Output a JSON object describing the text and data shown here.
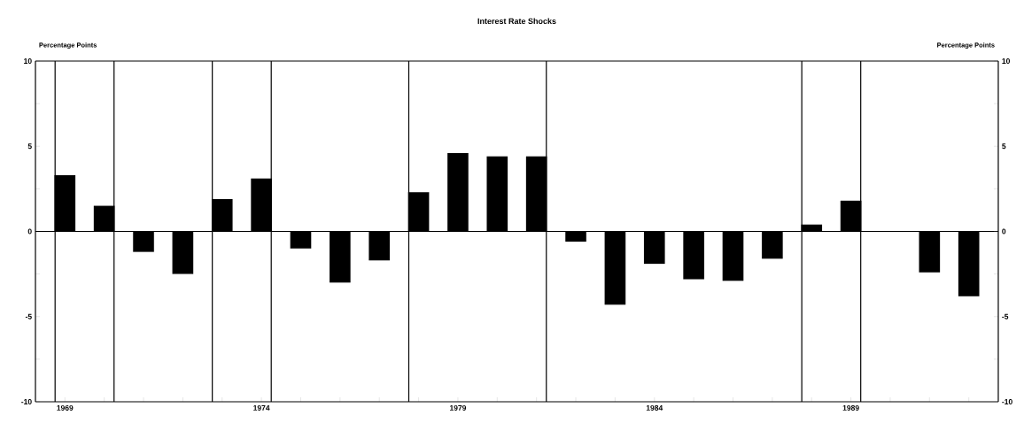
{
  "chart_data": {
    "type": "bar",
    "title": "Interest Rate Shocks",
    "ylabel": "Percentage Points",
    "y2label": "Percentage Points",
    "x": [
      1969,
      1970,
      1971,
      1972,
      1973,
      1974,
      1975,
      1976,
      1977,
      1978,
      1979,
      1980,
      1981,
      1982,
      1983,
      1984,
      1985,
      1986,
      1987,
      1988,
      1989,
      1990,
      1991,
      1992
    ],
    "values": [
      3.3,
      1.5,
      -1.2,
      -2.5,
      1.9,
      3.1,
      -1.0,
      -3.0,
      -1.7,
      2.3,
      4.6,
      4.4,
      4.4,
      -0.6,
      -4.3,
      -1.9,
      -2.8,
      -2.9,
      -1.6,
      0.4,
      1.8,
      null,
      -2.4,
      -3.8
    ],
    "color": "#000000",
    "xlim": [
      1968.25,
      1992.75
    ],
    "xticks": [
      1969,
      {
        "value": 1970,
        "label": null
      },
      {
        "value": 1971,
        "label": null
      },
      {
        "value": 1972,
        "label": null
      },
      {
        "value": 1973,
        "label": null
      },
      1974,
      {
        "value": 1975,
        "label": null
      },
      {
        "value": 1976,
        "label": null
      },
      {
        "value": 1977,
        "label": null
      },
      {
        "value": 1978,
        "label": null
      },
      1979,
      {
        "value": 1980,
        "label": null
      },
      {
        "value": 1981,
        "label": null
      },
      {
        "value": 1982,
        "label": null
      },
      {
        "value": 1983,
        "label": null
      },
      1984,
      {
        "value": 1985,
        "label": null
      },
      {
        "value": 1986,
        "label": null
      },
      {
        "value": 1987,
        "label": null
      },
      {
        "value": 1988,
        "label": null
      },
      1989,
      {
        "value": 1990,
        "label": null
      },
      {
        "value": 1991,
        "label": null
      },
      {
        "value": 1992,
        "label": null
      }
    ],
    "ylim": [
      -10,
      10
    ],
    "yticks": [
      -10,
      {
        "value": -7.5,
        "label": null
      },
      -5,
      {
        "value": -2.5,
        "label": null
      },
      0,
      {
        "value": 2.5,
        "label": null
      },
      5,
      {
        "value": 7.5,
        "label": null
      },
      10
    ],
    "y2lim": [
      -10,
      10
    ],
    "y2ticks": [
      -10,
      {
        "value": -7.5,
        "label": null
      },
      -5,
      {
        "value": -2.5,
        "label": null
      },
      0,
      {
        "value": 2.5,
        "label": null
      },
      5,
      {
        "value": 7.5,
        "label": null
      },
      10
    ],
    "ref_lines": [
      {
        "axis": "y",
        "value": 0
      },
      {
        "axis": "x",
        "value": 1968.75
      },
      {
        "axis": "x",
        "value": 1970.25
      },
      {
        "axis": "x",
        "value": 1972.75
      },
      {
        "axis": "x",
        "value": 1974.25
      },
      {
        "axis": "x",
        "value": 1977.75
      },
      {
        "axis": "x",
        "value": 1981.25
      },
      {
        "axis": "x",
        "value": 1987.75
      },
      {
        "axis": "x",
        "value": 1989.25
      }
    ]
  }
}
